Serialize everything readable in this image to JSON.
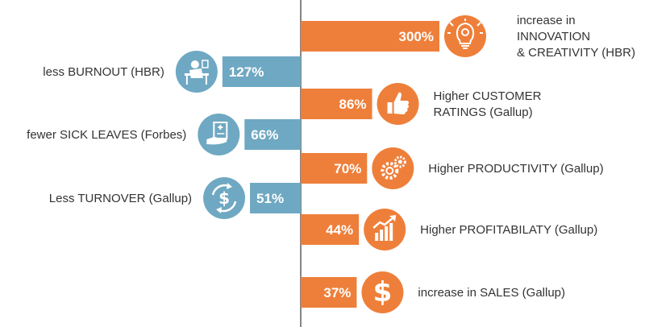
{
  "chart_data": {
    "type": "bar",
    "colors": {
      "left": "#6fa8c2",
      "right": "#ee7f3a"
    },
    "left_series": {
      "values": [
        127,
        66,
        51
      ],
      "value_labels": [
        "127%",
        "66%",
        "51%"
      ],
      "labels": [
        [
          "less BURNOUT (HBR)"
        ],
        [
          "fewer SICK LEAVES (Forbes)"
        ],
        [
          "Less TURNOVER (Gallup)"
        ]
      ],
      "icons": [
        "burnout-desk-icon",
        "sick-leave-icon",
        "turnover-money-icon"
      ]
    },
    "right_series": {
      "values": [
        300,
        86,
        70,
        44,
        37
      ],
      "value_labels": [
        "300%",
        "86%",
        "70%",
        "44%",
        "37%"
      ],
      "labels": [
        [
          "increase in",
          "INNOVATION",
          "& CREATIVITY (HBR)"
        ],
        [
          "Higher CUSTOMER",
          "RATINGS (Gallup)"
        ],
        [
          "Higher PRODUCTIVITY (Gallup)"
        ],
        [
          "Higher PROFITABILATY (Gallup)"
        ],
        [
          "increase in SALES (Gallup)"
        ]
      ],
      "icons": [
        "lightbulb-gear-icon",
        "thumbs-up-icon",
        "gears-icon",
        "growth-chart-icon",
        "dollar-icon"
      ]
    }
  }
}
